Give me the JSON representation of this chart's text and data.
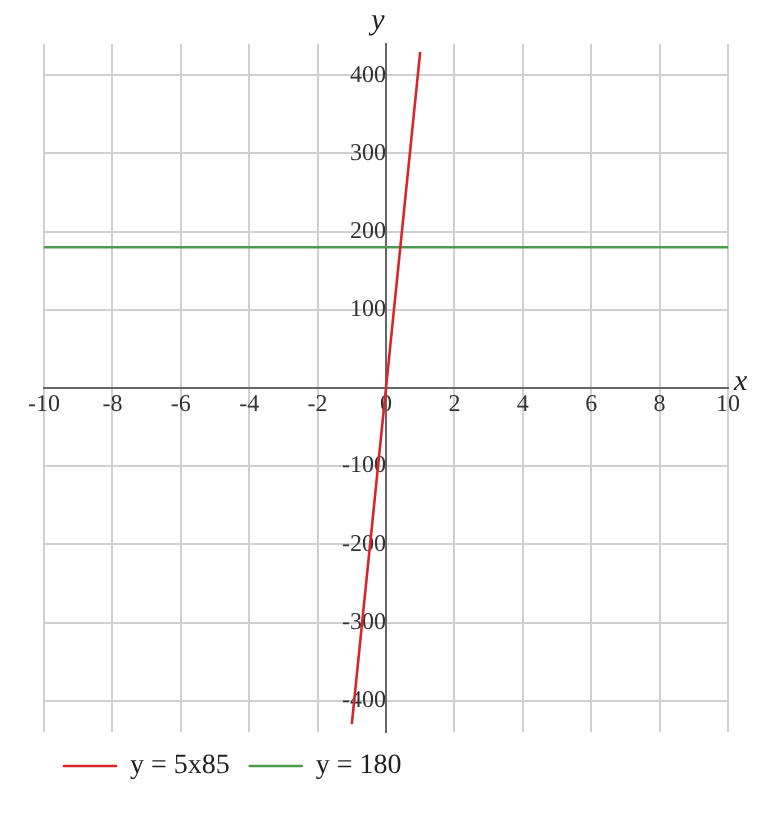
{
  "chart_data": {
    "type": "line",
    "xlabel": "x",
    "ylabel": "y",
    "xlim": [
      -10,
      10
    ],
    "ylim": [
      -440,
      440
    ],
    "xticks": [
      -10,
      -8,
      -6,
      -4,
      -2,
      0,
      2,
      4,
      6,
      8,
      10
    ],
    "yticks": [
      -400,
      -300,
      -200,
      -100,
      {
        "value": 0,
        "label": null
      },
      100,
      200,
      300,
      400
    ],
    "series": [
      {
        "name": "y = 5x85",
        "color": "#d62728",
        "x": [
          -1,
          1
        ],
        "values": [
          -430,
          430
        ]
      },
      {
        "name": "y = 180",
        "color": "#4c9a4c",
        "x": [
          -10,
          10
        ],
        "values": [
          180,
          180
        ]
      }
    ],
    "grid": true,
    "legend": "bottom left",
    "marker": "none",
    "line_style": "solid"
  }
}
